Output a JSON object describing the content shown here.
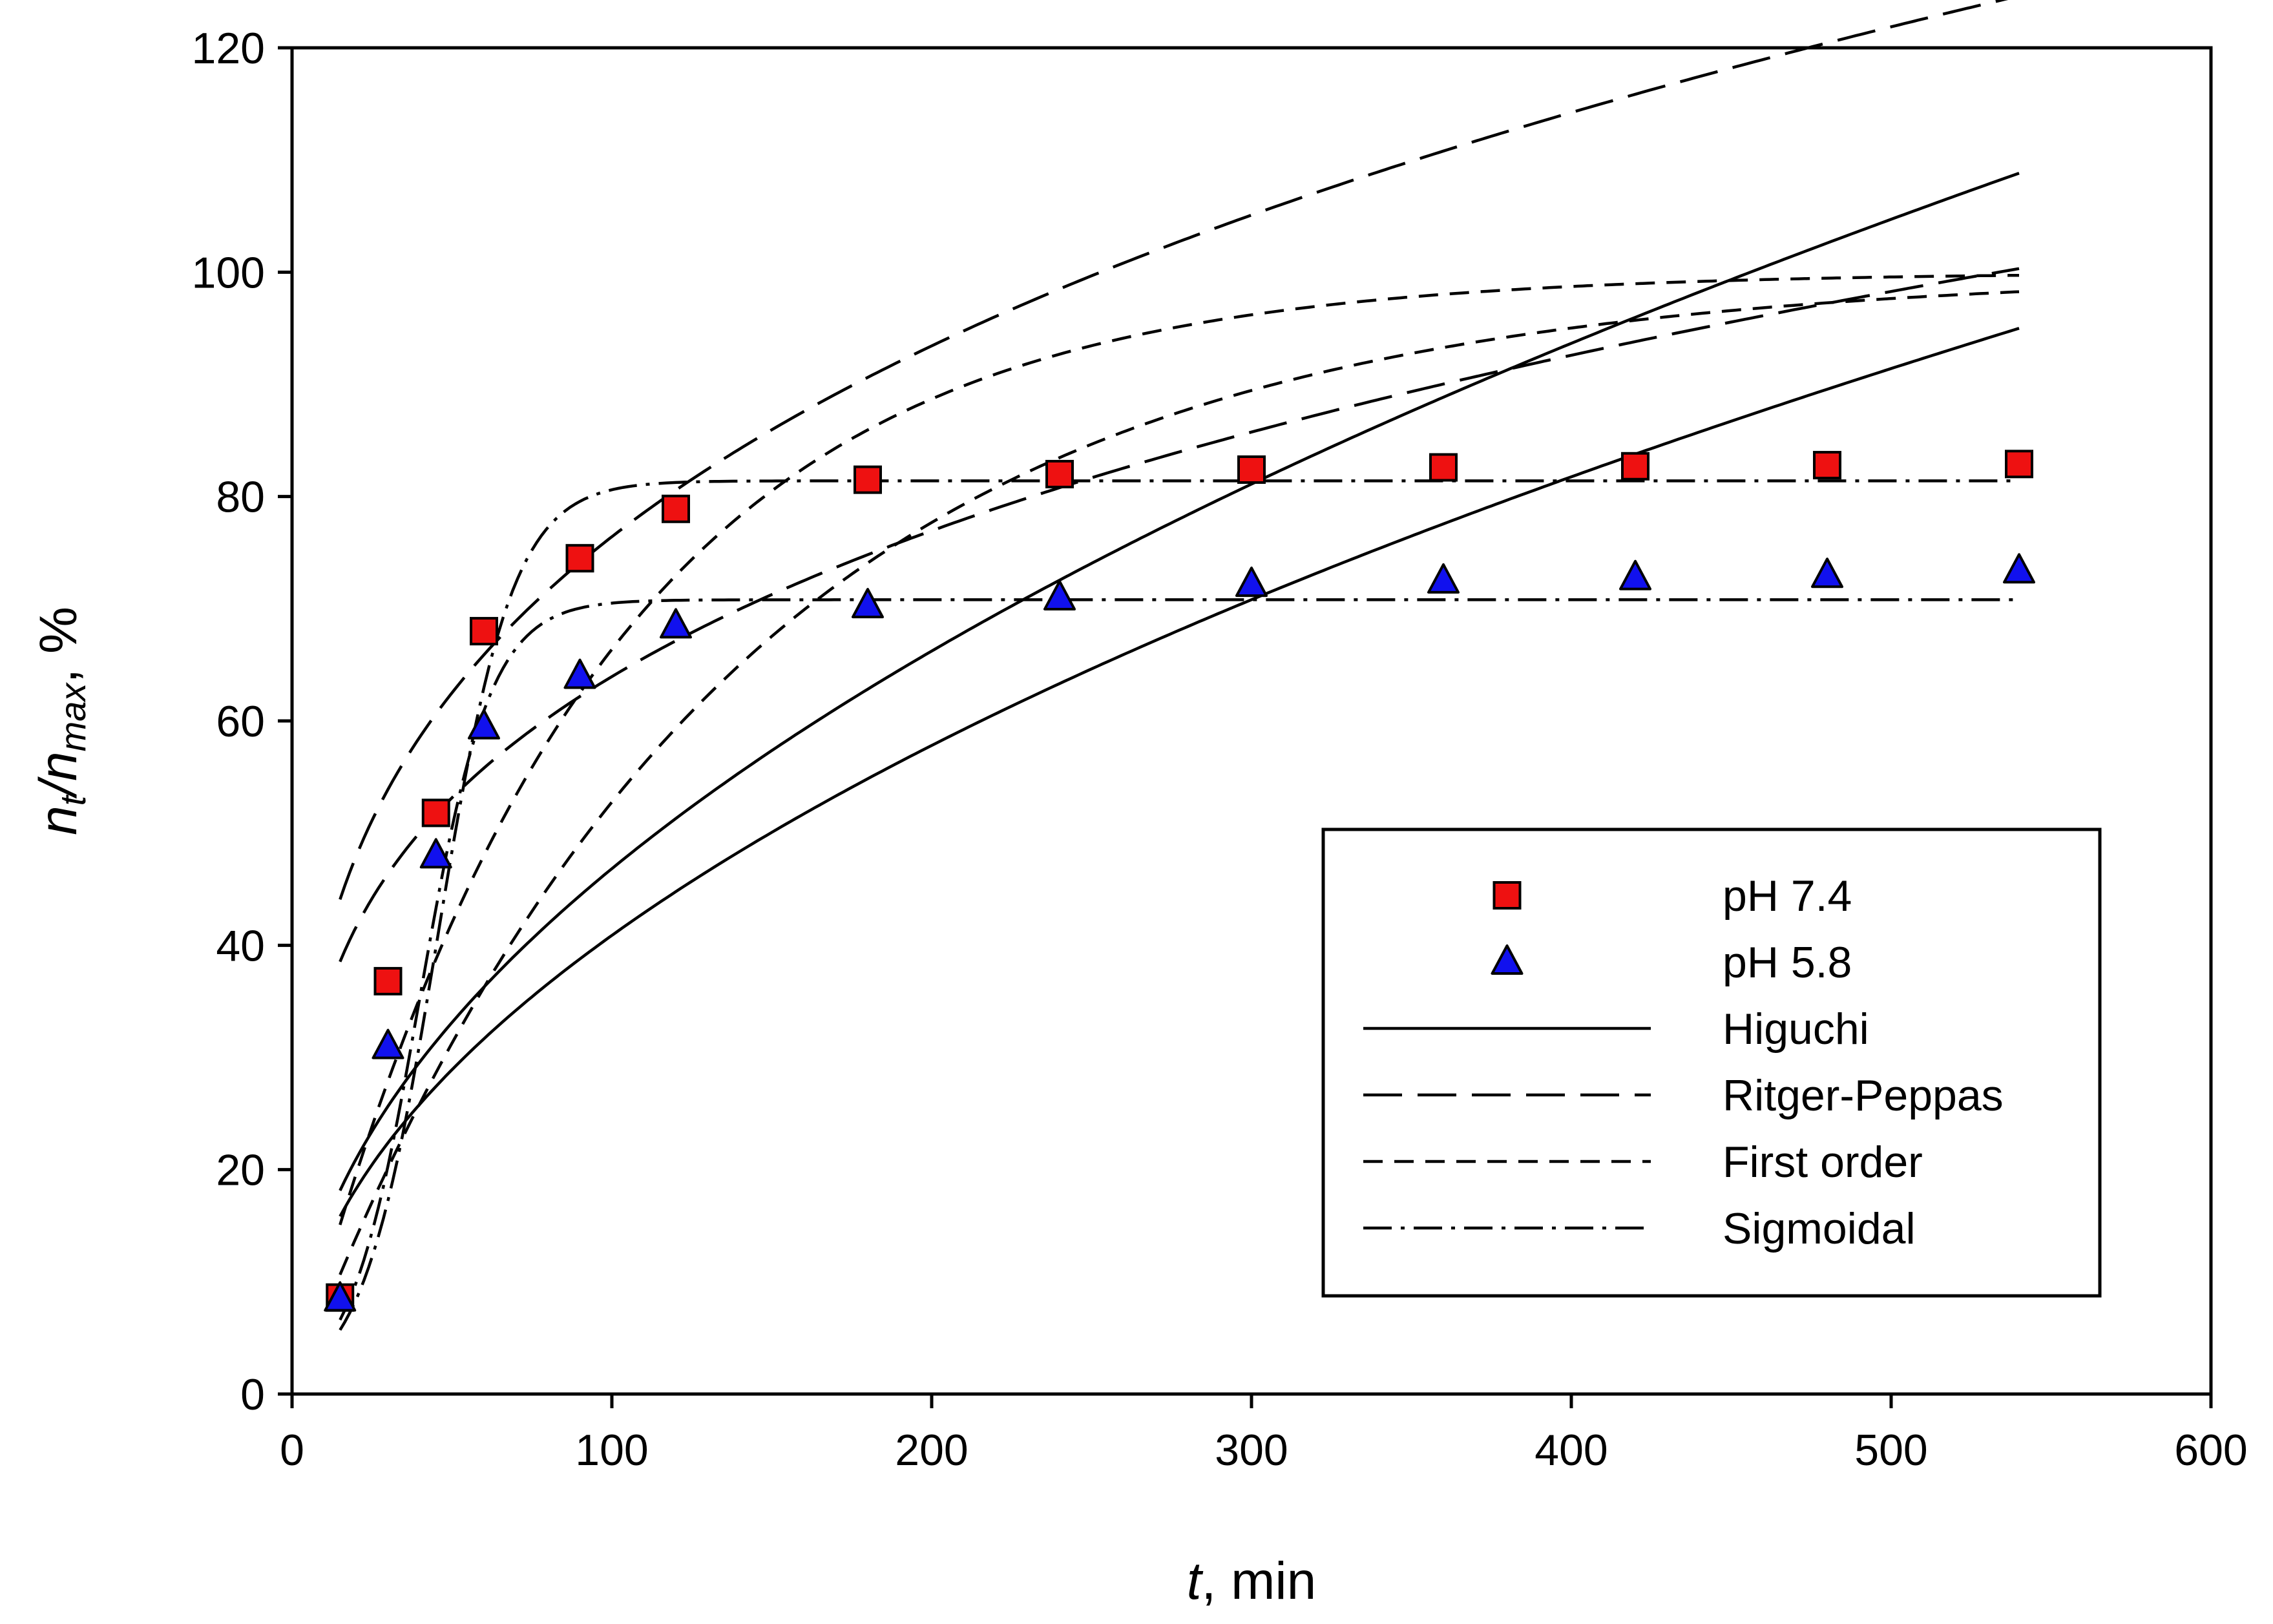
{
  "chart_data": {
    "type": "scatter",
    "title": "",
    "xlabel": {
      "var": "t",
      "unit": ", min"
    },
    "ylabel": {
      "n": "n",
      "t": "t",
      "slash": "/",
      "n2": "n",
      "max": "max",
      "unit": ", %"
    },
    "xlim": [
      0,
      600
    ],
    "ylim": [
      0,
      120
    ],
    "xticks": [
      0,
      100,
      200,
      300,
      400,
      500,
      600
    ],
    "yticks": [
      0,
      20,
      40,
      60,
      80,
      100,
      120
    ],
    "grid": false,
    "legend_position": "bottom-right",
    "series": [
      {
        "name": "pH 7.4",
        "marker": "square",
        "color": "#ee1111",
        "x": [
          15,
          30,
          45,
          60,
          90,
          120,
          180,
          240,
          300,
          360,
          420,
          480,
          540
        ],
        "y": [
          8.6,
          36.8,
          51.8,
          68.0,
          74.5,
          78.9,
          81.5,
          82.0,
          82.4,
          82.6,
          82.7,
          82.8,
          82.9
        ]
      },
      {
        "name": "pH 5.8",
        "marker": "triangle",
        "color": "#1111ee",
        "x": [
          15,
          30,
          45,
          60,
          90,
          120,
          180,
          240,
          300,
          360,
          420,
          480,
          540
        ],
        "y": [
          8.5,
          31.0,
          48.0,
          59.5,
          64.0,
          68.5,
          70.3,
          71.0,
          72.2,
          72.5,
          72.8,
          73.0,
          73.4
        ]
      }
    ],
    "fits": [
      {
        "name": "Higuchi",
        "dash": "solid",
        "model": "higuchi",
        "for": "pH 7.4",
        "k": 4.683
      },
      {
        "name": "Higuchi",
        "dash": "solid",
        "model": "higuchi",
        "for": "pH 5.8",
        "k": 4.088
      },
      {
        "name": "Ritger-Peppas",
        "dash": "long",
        "model": "peppas",
        "for": "pH 7.4",
        "k": 20.1,
        "n": 0.29
      },
      {
        "name": "Ritger-Peppas",
        "dash": "long",
        "model": "peppas",
        "for": "pH 5.8",
        "k": 18.7,
        "n": 0.267
      },
      {
        "name": "First order",
        "dash": "short",
        "model": "first_order",
        "for": "pH 7.4",
        "a": 100,
        "k": 0.0109
      },
      {
        "name": "First order",
        "dash": "short",
        "model": "first_order",
        "for": "pH 5.8",
        "a": 100,
        "k": 0.0075
      },
      {
        "name": "Sigmoidal",
        "dash": "dashdot",
        "model": "sigmoidal",
        "for": "pH 7.4",
        "a": 81.4,
        "x0": 45.5,
        "b": 11.8
      },
      {
        "name": "Sigmoidal",
        "dash": "dashdot",
        "model": "sigmoidal",
        "for": "pH 5.8",
        "a": 70.8,
        "x0": 40,
        "b": 11
      }
    ],
    "legend": [
      {
        "label": "pH 7.4",
        "kind": "marker",
        "marker": "square",
        "color": "#ee1111"
      },
      {
        "label": "pH 5.8",
        "kind": "marker",
        "marker": "triangle",
        "color": "#1111ee"
      },
      {
        "label": "Higuchi",
        "kind": "line",
        "dash": "solid"
      },
      {
        "label": "Ritger-Peppas",
        "kind": "line",
        "dash": "long"
      },
      {
        "label": "First order",
        "kind": "line",
        "dash": "short"
      },
      {
        "label": "Sigmoidal",
        "kind": "line",
        "dash": "dashdot"
      }
    ]
  }
}
